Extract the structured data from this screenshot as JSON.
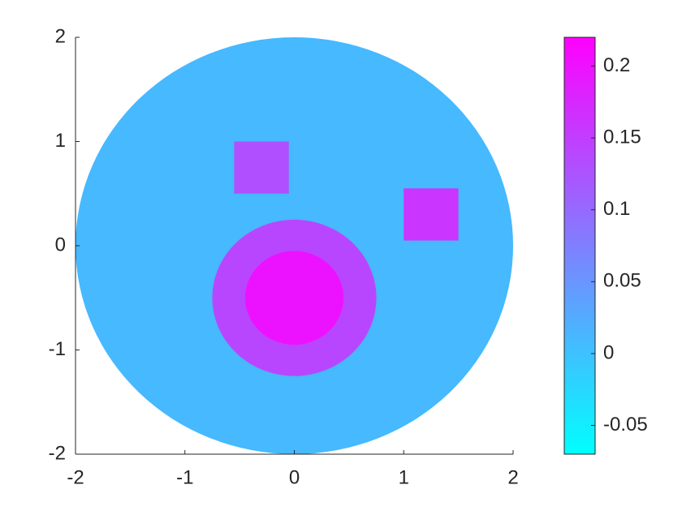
{
  "chart_data": {
    "type": "mesh-field",
    "colormap": "cool",
    "xlim": [
      -2,
      2
    ],
    "ylim": [
      -2,
      2
    ],
    "xticks": [
      -2,
      -1,
      0,
      1,
      2
    ],
    "yticks": [
      -2,
      -1,
      0,
      1,
      2
    ],
    "clim": [
      -0.07,
      0.22
    ],
    "cticks": [
      -0.05,
      0,
      0.05,
      0.1,
      0.15,
      0.2
    ],
    "regions": [
      {
        "shape": "circle",
        "center": [
          0,
          0
        ],
        "radius": 2,
        "value": 0.01
      },
      {
        "shape": "circle",
        "center": [
          0,
          -0.5
        ],
        "radius": 0.75,
        "value": 0.14
      },
      {
        "shape": "circle",
        "center": [
          0,
          -0.5
        ],
        "radius": 0.45,
        "value": 0.2
      },
      {
        "shape": "square",
        "center": [
          -0.3,
          0.75
        ],
        "size": 0.5,
        "value": 0.13
      },
      {
        "shape": "square",
        "center": [
          1.25,
          0.3
        ],
        "size": 0.5,
        "value": 0.16
      }
    ]
  }
}
